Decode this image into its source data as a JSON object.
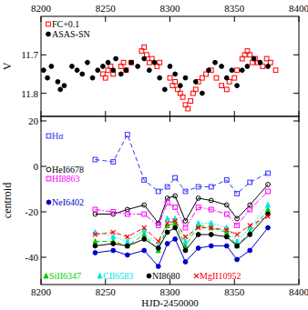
{
  "chart_data": [
    {
      "type": "scatter",
      "y_label": "V",
      "xlim": [
        8200,
        8400
      ],
      "xticks": [
        8200,
        8250,
        8300,
        8350,
        8400
      ],
      "ylim": [
        11.86,
        11.6
      ],
      "yticks": [
        11.7,
        11.8
      ],
      "tick_labels": true,
      "legend": "upper-left",
      "series": [
        {
          "name": "FC+0.1",
          "color": "#ff0000",
          "marker": "square-open",
          "x": [
            8248,
            8250,
            8252,
            8254,
            8256,
            8262,
            8264,
            8266,
            8270,
            8278,
            8280,
            8282,
            8284,
            8286,
            8290,
            8292,
            8300,
            8302,
            8304,
            8306,
            8308,
            8310,
            8312,
            8314,
            8316,
            8318,
            8320,
            8322,
            8325,
            8328,
            8332,
            8336,
            8340,
            8344,
            8346,
            8350,
            8352,
            8356,
            8358,
            8360,
            8362,
            8364,
            8366,
            8368,
            8372,
            8375,
            8378,
            8382
          ],
          "values": [
            11.75,
            11.76,
            11.74,
            11.73,
            11.75,
            11.73,
            11.72,
            11.74,
            11.72,
            11.69,
            11.68,
            11.7,
            11.72,
            11.71,
            11.73,
            11.72,
            11.76,
            11.78,
            11.77,
            11.79,
            11.8,
            11.81,
            11.83,
            11.84,
            11.82,
            11.8,
            11.79,
            11.77,
            11.76,
            11.75,
            11.74,
            11.76,
            11.78,
            11.79,
            11.77,
            11.76,
            11.74,
            11.71,
            11.7,
            11.69,
            11.7,
            11.72,
            11.71,
            11.72,
            11.73,
            11.71,
            11.72,
            11.74
          ]
        },
        {
          "name": "ASAS-SN",
          "color": "#000000",
          "marker": "circle",
          "x": [
            8202,
            8205,
            8208,
            8213,
            8215,
            8218,
            8224,
            8228,
            8232,
            8236,
            8240,
            8244,
            8248,
            8252,
            8256,
            8258,
            8262,
            8266,
            8270,
            8275,
            8280,
            8284,
            8288,
            8292,
            8296,
            8300,
            8304,
            8308,
            8312,
            8320,
            8325,
            8330,
            8335,
            8340,
            8344,
            8348,
            8352,
            8356,
            8360,
            8365,
            8370,
            8376
          ],
          "values": [
            11.74,
            11.76,
            11.73,
            11.77,
            11.79,
            11.78,
            11.73,
            11.74,
            11.75,
            11.72,
            11.76,
            11.74,
            11.73,
            11.72,
            11.74,
            11.71,
            11.75,
            11.74,
            11.72,
            11.73,
            11.71,
            11.74,
            11.72,
            11.76,
            11.79,
            11.73,
            11.75,
            11.78,
            11.76,
            11.77,
            11.8,
            11.74,
            11.72,
            11.73,
            11.76,
            11.74,
            11.78,
            11.74,
            11.73,
            11.71,
            11.72,
            11.73
          ]
        }
      ]
    },
    {
      "type": "line",
      "x_label": "HJD-2450000",
      "y_label": "centroid",
      "xlim": [
        8200,
        8400
      ],
      "xticks": [
        8200,
        8250,
        8300,
        8350,
        8400
      ],
      "ylim": [
        -52,
        22
      ],
      "yticks": [
        -40,
        -20,
        0,
        20
      ],
      "tick_labels": true,
      "x": [
        8242,
        8256,
        8267,
        8280,
        8291,
        8298,
        8304,
        8312,
        8322,
        8332,
        8344,
        8352,
        8362,
        8376
      ],
      "series": [
        {
          "name": "Hα",
          "color": "#3333ff",
          "marker": "square-open",
          "line_style": "dashed",
          "values": [
            3,
            2,
            14,
            -6,
            -11,
            -9,
            -5,
            -11,
            -9,
            -9,
            -6,
            -12,
            -7,
            -3
          ]
        },
        {
          "name": "HeI6678",
          "color": "#000000",
          "marker": "circle-open",
          "line_style": "solid",
          "values": [
            -21,
            -21,
            -19,
            -17,
            -25,
            -14,
            -13,
            -24,
            -14,
            -15,
            -17,
            -23,
            -17,
            -8
          ]
        },
        {
          "name": "HI8863",
          "color": "#ff00ff",
          "marker": "square-open",
          "line_style": "dashdot",
          "values": [
            -19,
            -20,
            -21,
            -21,
            -26,
            -16,
            -18,
            -27,
            -18,
            -19,
            -21,
            -26,
            -19,
            -11
          ]
        },
        {
          "name": "NeI6402",
          "color": "#0000cc",
          "marker": "circle",
          "line_style": "solid",
          "values": [
            -38,
            -37,
            -39,
            -37,
            -44,
            -34,
            -32,
            -42,
            -36,
            -35,
            -35,
            -41,
            -37,
            -27
          ]
        },
        {
          "name": "SiII6347",
          "color": "#00cc00",
          "marker": "triangle",
          "line_style": "dashed",
          "values": [
            -33,
            -33,
            -35,
            -30,
            -37,
            -26,
            -25,
            -35,
            -26,
            -27,
            -29,
            -35,
            -29,
            -19
          ]
        },
        {
          "name": "CII6583",
          "color": "#00e5e5",
          "marker": "triangle",
          "line_style": "dotted",
          "values": [
            -29,
            -31,
            -33,
            -28,
            -35,
            -23,
            -23,
            -33,
            -25,
            -25,
            -27,
            -33,
            -27,
            -17
          ]
        },
        {
          "name": "NI8680",
          "color": "#000000",
          "marker": "circle",
          "line_style": "solid",
          "values": [
            -35,
            -34,
            -35,
            -32,
            -36,
            -29,
            -27,
            -37,
            -30,
            -30,
            -31,
            -35,
            -30,
            -21
          ]
        },
        {
          "name": "MgII10952",
          "color": "#ff0000",
          "marker": "cross",
          "line_style": "dashed",
          "values": [
            -30,
            -29,
            -31,
            -27,
            -33,
            -25,
            -24,
            -31,
            -27,
            -27,
            -28,
            -30,
            -26,
            -22
          ]
        }
      ]
    }
  ]
}
